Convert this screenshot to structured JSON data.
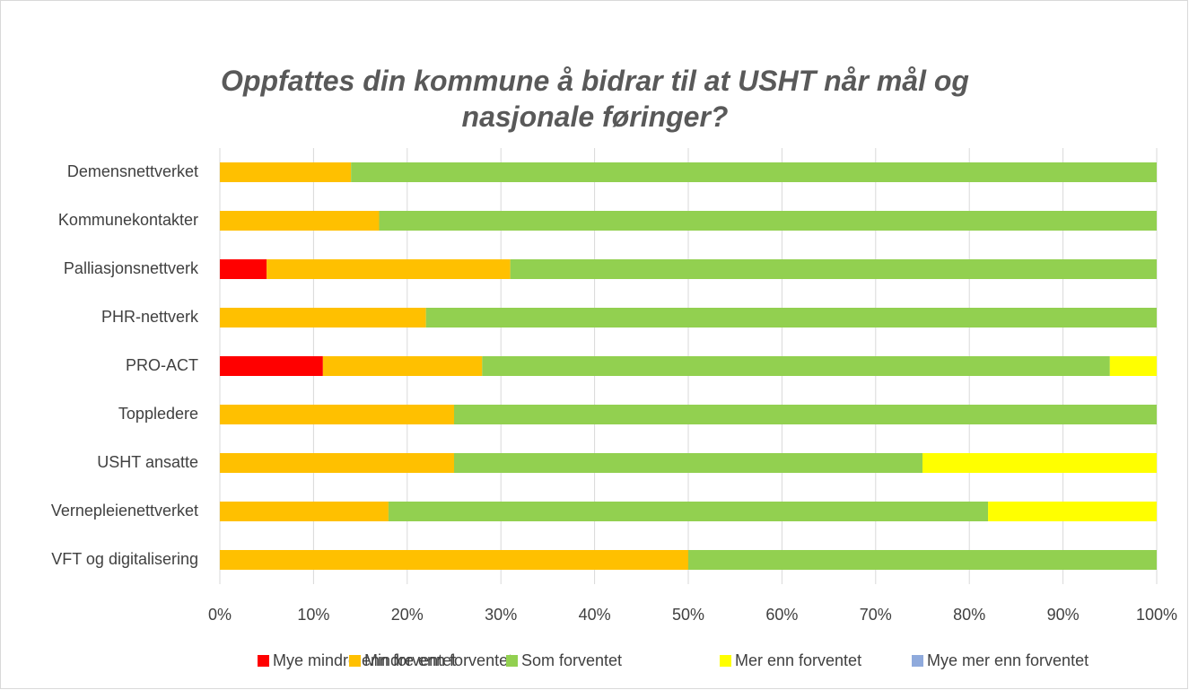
{
  "chart_data": {
    "type": "stacked_barh",
    "title": "Oppfattes din kommune å bidrar til at USHT når mål og nasjonale føringer?",
    "categories": [
      "Demensnettverket",
      "Kommunekontakter",
      "Palliasjonsnettverk",
      "PHR-nettverk",
      "PRO-ACT",
      "Toppledere",
      "USHT ansatte",
      "Vernepleienettverket",
      "VFT og digitalisering"
    ],
    "series": [
      {
        "name": "Mye mindre enn forventet",
        "color": "#ff0000",
        "values": [
          0,
          0,
          5,
          0,
          11,
          0,
          0,
          0,
          0
        ]
      },
      {
        "name": "Mindre enn forventet",
        "color": "#ffc000",
        "values": [
          14,
          17,
          26,
          22,
          17,
          25,
          25,
          18,
          50
        ]
      },
      {
        "name": "Som forventet",
        "color": "#92d050",
        "values": [
          86,
          83,
          69,
          78,
          67,
          75,
          50,
          64,
          50
        ]
      },
      {
        "name": "Mer enn forventet",
        "color": "#ffff00",
        "values": [
          0,
          0,
          0,
          0,
          5,
          0,
          25,
          18,
          0
        ]
      },
      {
        "name": "Mye mer enn forventet",
        "color": "#8faadc",
        "values": [
          0,
          0,
          0,
          0,
          0,
          0,
          0,
          0,
          0
        ]
      }
    ],
    "xlim": [
      0,
      100
    ],
    "xticks": [
      {
        "value": 0,
        "label": "0%"
      },
      {
        "value": 10,
        "label": "10%"
      },
      {
        "value": 20,
        "label": "20%"
      },
      {
        "value": 30,
        "label": "30%"
      },
      {
        "value": 40,
        "label": "40%"
      },
      {
        "value": 50,
        "label": "50%"
      },
      {
        "value": 60,
        "label": "60%"
      },
      {
        "value": 70,
        "label": "70%"
      },
      {
        "value": 80,
        "label": "80%"
      },
      {
        "value": 90,
        "label": "90%"
      },
      {
        "value": 100,
        "label": "100%"
      }
    ],
    "grid": true,
    "legend": "bottom"
  }
}
